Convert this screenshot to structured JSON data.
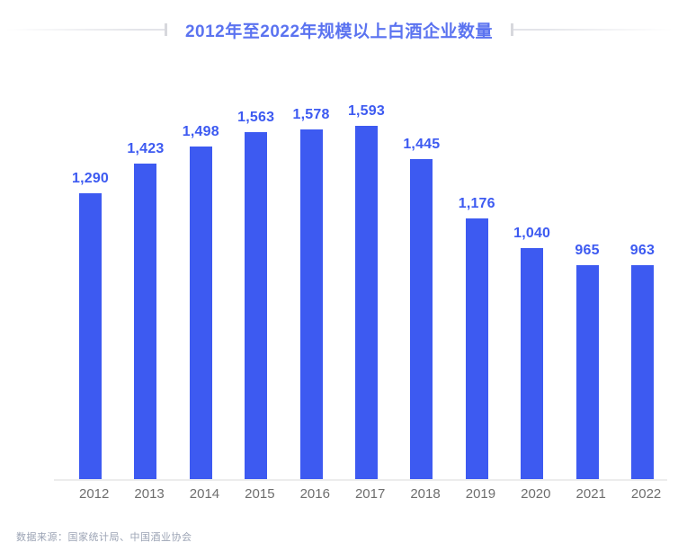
{
  "page": {
    "title": "2012年至2022年规模以上白酒企业数量",
    "source_note": "数据来源：国家统计局、中国酒业协会"
  },
  "colors": {
    "bar": "#3d5af1",
    "value_label": "#3d5af1",
    "title": "#5b73f0",
    "axis_line": "#ececec",
    "tick_label": "#6e6e6e",
    "source_note": "#9ca4b5"
  },
  "chart_data": {
    "type": "bar",
    "title": "2012年至2022年规模以上白酒企业数量",
    "categories": [
      "2012",
      "2013",
      "2014",
      "2015",
      "2016",
      "2017",
      "2018",
      "2019",
      "2020",
      "2021",
      "2022"
    ],
    "values": [
      1290,
      1423,
      1498,
      1563,
      1578,
      1593,
      1445,
      1176,
      1040,
      965,
      963
    ],
    "value_labels": [
      "1,290",
      "1,423",
      "1,498",
      "1,563",
      "1,578",
      "1,593",
      "1,445",
      "1,176",
      "1,040",
      "965",
      "963"
    ],
    "xlabel": "",
    "ylabel": "",
    "ylim": [
      0,
      1755
    ],
    "grid": false,
    "legend": false,
    "value_label_position": "above-bars",
    "baseline_axis": true
  }
}
